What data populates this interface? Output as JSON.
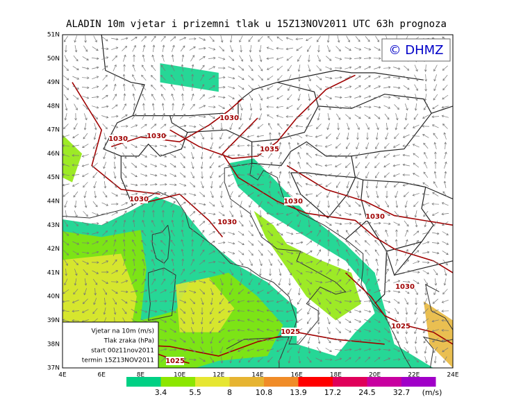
{
  "title": "ALADIN 10m vjetar i prizemni tlak u 15Z13NOV2011 UTC 63h prognoza",
  "copyright": "© DHMZ",
  "lat_labels": [
    "51N",
    "50N",
    "49N",
    "48N",
    "47N",
    "46N",
    "45N",
    "44N",
    "43N",
    "42N",
    "41N",
    "40N",
    "39N",
    "38N",
    "37N"
  ],
  "lon_labels": [
    "4E",
    "6E",
    "8E",
    "10E",
    "12E",
    "14E",
    "16E",
    "18E",
    "20E",
    "22E",
    "24E"
  ],
  "legend": {
    "lines": [
      "Vjetar na 10m (m/s)",
      "Tlak zraka (hPa)",
      "start 00z11nov2011",
      "termin 15Z13NOV2011"
    ]
  },
  "colorbar": {
    "labels": [
      3.4,
      5.5,
      8,
      10.8,
      13.9,
      17.2,
      24.5,
      32.7
    ],
    "unit": "(m/s)",
    "colors": [
      "#00d084",
      "#8ce600",
      "#e6e632",
      "#e6b432",
      "#f08c28",
      "#ff0000",
      "#e0005a",
      "#c800a0",
      "#a000c8"
    ]
  },
  "isobar_labels": [
    1030,
    1030,
    1030,
    1035,
    1030,
    1030,
    1030,
    1030,
    1030,
    1025,
    1025,
    1025
  ]
}
